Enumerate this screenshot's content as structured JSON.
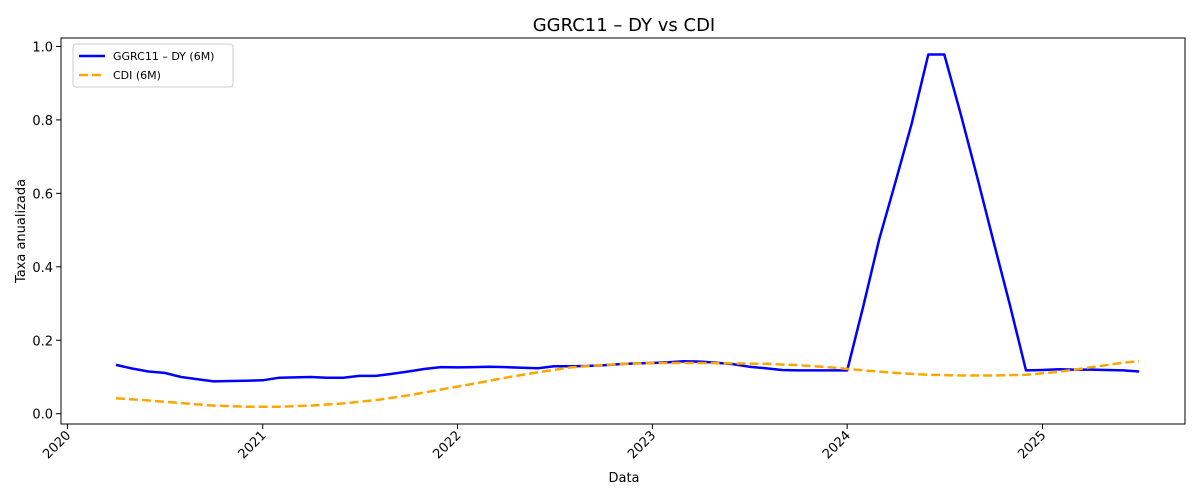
{
  "chart_data": {
    "type": "line",
    "title": "GGRC11 – DY vs CDI",
    "xlabel": "Data",
    "ylabel": "Taxa anualizada",
    "xlim": [
      "2019-12-20",
      "2025-09-25"
    ],
    "ylim": [
      -0.028,
      1.023
    ],
    "x_ticks": [
      "2020",
      "2021",
      "2022",
      "2023",
      "2024",
      "2025"
    ],
    "y_ticks": [
      "0.0",
      "0.2",
      "0.4",
      "0.6",
      "0.8",
      "1.0"
    ],
    "grid": false,
    "legend_position": "top-left",
    "series": [
      {
        "name": "GGRC11 – DY (6M)",
        "color": "#0000ff",
        "style": "solid",
        "x": [
          "2020-04-01",
          "2020-05-01",
          "2020-06-01",
          "2020-07-01",
          "2020-08-01",
          "2020-09-01",
          "2020-10-01",
          "2020-11-01",
          "2020-12-01",
          "2021-01-01",
          "2021-02-01",
          "2021-03-01",
          "2021-04-01",
          "2021-05-01",
          "2021-06-01",
          "2021-07-01",
          "2021-08-01",
          "2021-09-01",
          "2021-10-01",
          "2021-11-01",
          "2021-12-01",
          "2022-01-01",
          "2022-02-01",
          "2022-03-01",
          "2022-04-01",
          "2022-05-01",
          "2022-06-01",
          "2022-07-01",
          "2022-08-01",
          "2022-09-01",
          "2022-10-01",
          "2022-11-01",
          "2022-12-01",
          "2023-01-01",
          "2023-02-01",
          "2023-03-01",
          "2023-04-01",
          "2023-05-01",
          "2023-06-01",
          "2023-07-01",
          "2023-08-01",
          "2023-09-01",
          "2023-10-01",
          "2023-11-01",
          "2023-12-01",
          "2024-01-01",
          "2024-02-01",
          "2024-03-01",
          "2024-04-01",
          "2024-05-01",
          "2024-06-01",
          "2024-07-01",
          "2024-08-01",
          "2024-09-01",
          "2024-10-01",
          "2024-11-01",
          "2024-12-01",
          "2025-01-01",
          "2025-02-01",
          "2025-03-01",
          "2025-04-01",
          "2025-05-01",
          "2025-06-01",
          "2025-07-01"
        ],
        "y": [
          0.133,
          0.123,
          0.115,
          0.111,
          0.1,
          0.094,
          0.088,
          0.089,
          0.09,
          0.091,
          0.098,
          0.099,
          0.1,
          0.098,
          0.098,
          0.103,
          0.103,
          0.109,
          0.115,
          0.122,
          0.127,
          0.126,
          0.127,
          0.128,
          0.127,
          0.125,
          0.124,
          0.129,
          0.129,
          0.13,
          0.132,
          0.135,
          0.137,
          0.138,
          0.14,
          0.143,
          0.142,
          0.139,
          0.135,
          0.128,
          0.124,
          0.119,
          0.118,
          0.118,
          0.118,
          0.118,
          0.297,
          0.475,
          0.633,
          0.79,
          0.978,
          0.978,
          0.815,
          0.642,
          0.47,
          0.296,
          0.118,
          0.119,
          0.121,
          0.12,
          0.12,
          0.119,
          0.118,
          0.115
        ]
      },
      {
        "name": "CDI (6M)",
        "color": "#ffa500",
        "style": "dashed",
        "x": [
          "2020-04-01",
          "2020-06-01",
          "2020-08-01",
          "2020-10-01",
          "2020-12-01",
          "2021-02-01",
          "2021-04-01",
          "2021-06-01",
          "2021-08-01",
          "2021-10-01",
          "2021-12-01",
          "2022-02-01",
          "2022-04-01",
          "2022-06-01",
          "2022-08-01",
          "2022-10-01",
          "2022-12-01",
          "2023-02-01",
          "2023-04-01",
          "2023-06-01",
          "2023-08-01",
          "2023-10-01",
          "2023-12-01",
          "2024-02-01",
          "2024-04-01",
          "2024-06-01",
          "2024-08-01",
          "2024-10-01",
          "2024-12-01",
          "2025-02-01",
          "2025-04-01",
          "2025-06-01",
          "2025-07-01"
        ],
        "y": [
          0.042,
          0.036,
          0.029,
          0.022,
          0.019,
          0.019,
          0.022,
          0.028,
          0.037,
          0.05,
          0.066,
          0.082,
          0.098,
          0.113,
          0.126,
          0.133,
          0.137,
          0.138,
          0.138,
          0.137,
          0.136,
          0.132,
          0.126,
          0.118,
          0.111,
          0.106,
          0.104,
          0.104,
          0.106,
          0.114,
          0.126,
          0.139,
          0.143
        ]
      }
    ]
  }
}
